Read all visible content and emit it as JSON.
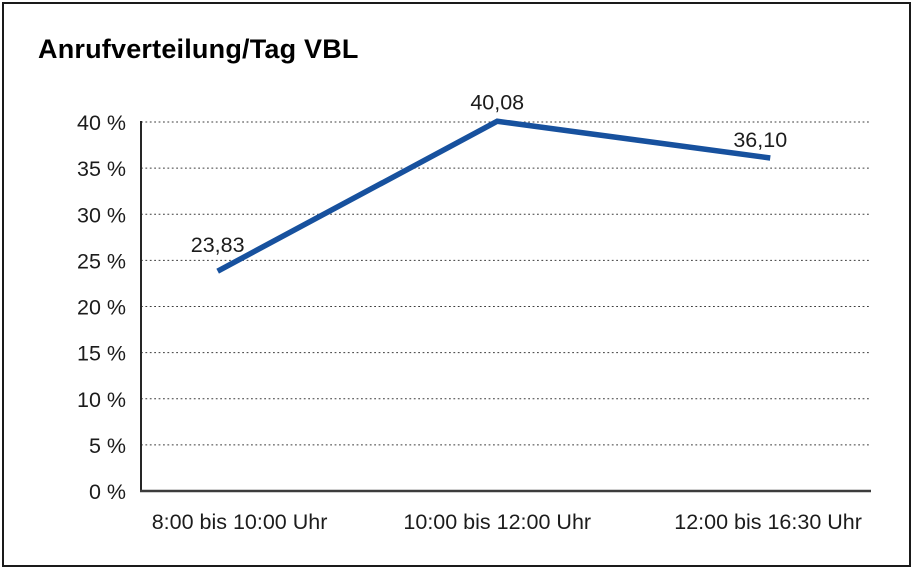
{
  "page": {
    "background_color": "#ffffff",
    "frame_border_color": "#1a1a1a"
  },
  "chart": {
    "title": "Anrufverteilung/Tag VBL"
  },
  "chart_data": {
    "type": "line",
    "title": "Anrufverteilung/Tag VBL",
    "categories": [
      "8:00 bis 10:00 Uhr",
      "10:00 bis 12:00 Uhr",
      "12:00 bis 16:30 Uhr"
    ],
    "values": [
      23.83,
      40.08,
      36.1
    ],
    "point_labels": [
      "23,83",
      "40,08",
      "36,10"
    ],
    "ytick_values": [
      0,
      5,
      10,
      15,
      20,
      25,
      30,
      35,
      40
    ],
    "ytick_labels": [
      "0 %",
      "5 %",
      "10 %",
      "15 %",
      "20 %",
      "25 %",
      "30 %",
      "35 %",
      "40 %"
    ],
    "xlabel": "",
    "ylabel": "",
    "ylim": [
      0,
      40
    ],
    "grid": "horizontal-dotted",
    "legend": "none",
    "line_color": "#17519e",
    "axis_color": "#3c3c3c",
    "grid_color": "#3d3d3d",
    "text_color": "#1c1c1c"
  }
}
